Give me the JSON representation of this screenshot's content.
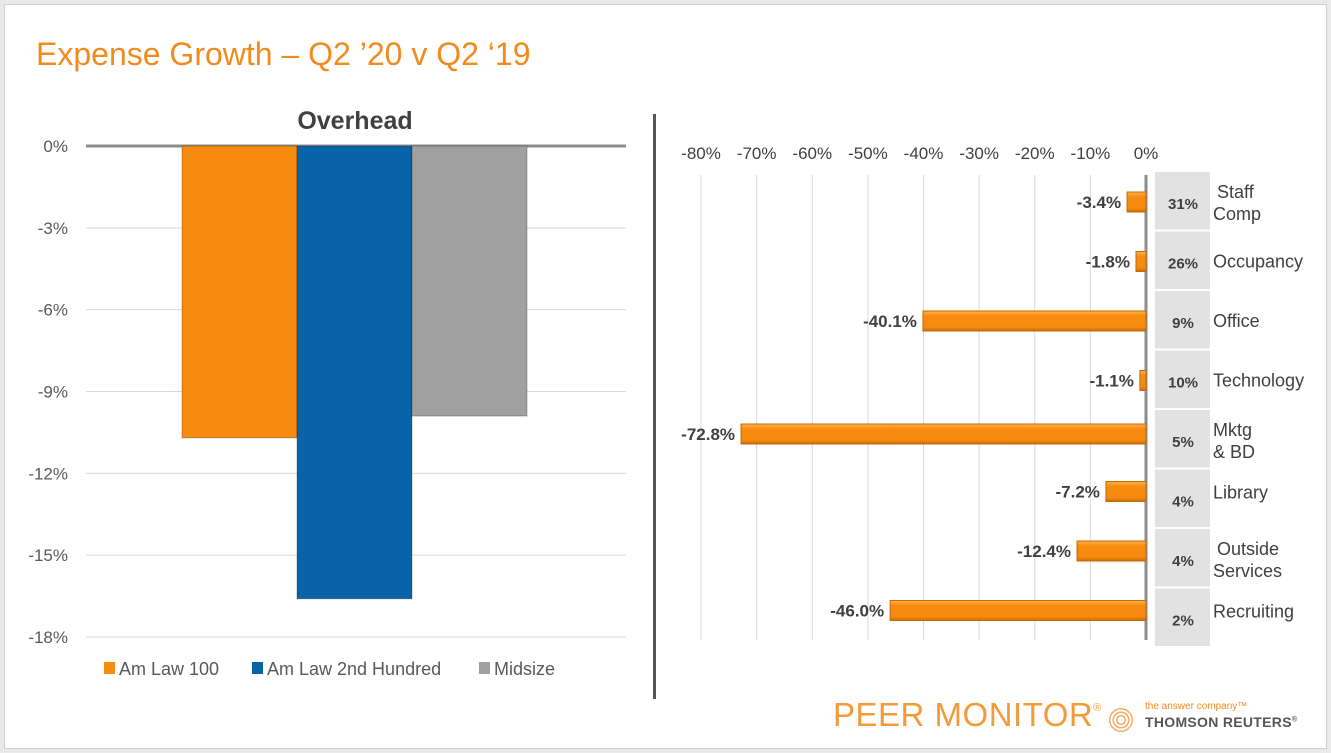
{
  "slide": {
    "title": "Expense Growth – Q2 ’20 v Q2 ‘19",
    "brand": {
      "product": "PEER MONITOR",
      "registered": "®",
      "tagline": "the answer company™",
      "company": "THOMSON REUTERS",
      "company_mark": "®"
    },
    "colors": {
      "title": "#f28a1d",
      "am_law_100": "#f68b0f",
      "am_law_2nd_hundred": "#0863a9",
      "midsize": "#a0a0a0",
      "share_box": "#e2e2e2"
    }
  },
  "chart_data": [
    {
      "type": "bar",
      "title": "Overhead",
      "categories": [
        "Overhead"
      ],
      "series": [
        {
          "name": "Am Law 100",
          "values": [
            -10.7
          ]
        },
        {
          "name": "Am Law 2nd Hundred",
          "values": [
            -16.6
          ]
        },
        {
          "name": "Midsize",
          "values": [
            -9.9
          ]
        }
      ],
      "ylim": [
        -18,
        0
      ],
      "yticks": [
        0,
        -3,
        -6,
        -9,
        -12,
        -15,
        -18
      ],
      "ytick_labels": [
        "0%",
        "-3%",
        "-6%",
        "-9%",
        "-12%",
        "-15%",
        "-18%"
      ],
      "xlabel": "",
      "ylabel": "",
      "grid": true,
      "legend": "bottom"
    },
    {
      "type": "bar",
      "orientation": "horizontal",
      "title": "",
      "categories": [
        "Staff Comp",
        "Occupancy",
        "Office",
        "Technology",
        "Mktg & BD",
        "Library",
        "Outside Services",
        "Recruiting"
      ],
      "category_lines": [
        [
          "Staff",
          "Comp"
        ],
        [
          "Occupancy"
        ],
        [
          "Office"
        ],
        [
          "Technology"
        ],
        [
          "Mktg",
          "& BD"
        ],
        [
          "Library"
        ],
        [
          "Outside",
          "Services"
        ],
        [
          "Recruiting"
        ]
      ],
      "values": [
        -3.4,
        -1.8,
        -40.1,
        -1.1,
        -72.8,
        -7.2,
        -12.4,
        -46.0
      ],
      "data_labels": [
        "-3.4%",
        "-1.8%",
        "-40.1%",
        "-1.1%",
        "-72.8%",
        "-7.2%",
        "-12.4%",
        "-46.0%"
      ],
      "share_of_overhead": [
        "31%",
        "26%",
        "9%",
        "10%",
        "5%",
        "4%",
        "4%",
        "2%"
      ],
      "xlim": [
        -80,
        0
      ],
      "xticks": [
        -80,
        -70,
        -60,
        -50,
        -40,
        -30,
        -20,
        -10,
        0
      ],
      "xtick_labels": [
        "-80%",
        "-70%",
        "-60%",
        "-50%",
        "-40%",
        "-30%",
        "-20%",
        "-10%",
        "0%"
      ],
      "xlabel": "",
      "ylabel": "",
      "grid": true,
      "legend": "none"
    }
  ]
}
